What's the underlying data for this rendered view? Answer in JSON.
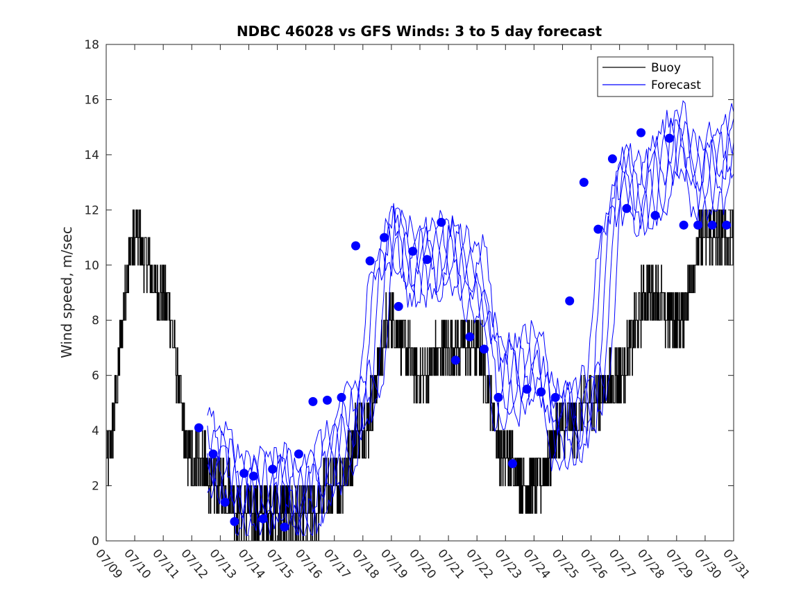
{
  "chart_data": {
    "type": "line",
    "title": "NDBC 46028 vs GFS Winds: 3 to 5 day forecast",
    "xlabel": "",
    "ylabel": "Wind speed, m/sec",
    "xlim": [
      "07/09",
      "07/31"
    ],
    "ylim": [
      0,
      18
    ],
    "x_tick_labels": [
      "07/09",
      "07/10",
      "07/11",
      "07/12",
      "07/13",
      "07/14",
      "07/15",
      "07/16",
      "07/17",
      "07/18",
      "07/19",
      "07/20",
      "07/21",
      "07/22",
      "07/23",
      "07/24",
      "07/25",
      "07/26",
      "07/27",
      "07/28",
      "07/29",
      "07/30",
      "07/31"
    ],
    "y_tick_labels": [
      "0",
      "2",
      "4",
      "6",
      "8",
      "10",
      "12",
      "14",
      "16",
      "18"
    ],
    "legend": {
      "position": "top-right",
      "entries": [
        "Buoy",
        "Forecast"
      ]
    },
    "grid": false,
    "series": [
      {
        "name": "Buoy",
        "color": "#000000",
        "style": "step line (integer m/s readings, daily samples)",
        "x": [
          "07/09",
          "07/10",
          "07/11",
          "07/12",
          "07/13",
          "07/14",
          "07/15",
          "07/16",
          "07/17",
          "07/18",
          "07/19",
          "07/20",
          "07/21",
          "07/22",
          "07/23",
          "07/24",
          "07/25",
          "07/26",
          "07/27",
          "07/28",
          "07/29",
          "07/30",
          "07/31"
        ],
        "values": [
          3,
          11,
          9,
          3,
          2,
          1,
          1,
          1,
          2,
          4,
          8,
          6,
          7,
          7,
          3,
          2,
          4,
          5,
          6,
          9,
          8,
          11,
          11
        ]
      },
      {
        "name": "Forecast",
        "color": "#0000ff",
        "style": "lines (multiple overlapping forecast runs)",
        "x": [
          "07/12",
          "07/13",
          "07/14",
          "07/15",
          "07/16",
          "07/17",
          "07/18",
          "07/19",
          "07/20",
          "07/21",
          "07/22",
          "07/23",
          "07/24",
          "07/25",
          "07/26",
          "07/27",
          "07/28",
          "07/29",
          "07/30",
          "07/31"
        ],
        "values": [
          4.0,
          3.0,
          1.5,
          2.0,
          1.5,
          3.0,
          5.0,
          11.0,
          10.0,
          10.5,
          9.5,
          5.5,
          6.5,
          4.0,
          5.0,
          13.0,
          12.5,
          14.5,
          13.0,
          14.5
        ]
      },
      {
        "name": "",
        "color": "#0000ff",
        "style": "markers (filled circles)",
        "x": [
          "07/12",
          "07/12",
          "07/13",
          "07/13",
          "07/13",
          "07/14",
          "07/14",
          "07/14",
          "07/15",
          "07/15",
          "07/16",
          "07/16",
          "07/17",
          "07/17",
          "07/18",
          "07/18",
          "07/19",
          "07/19",
          "07/20",
          "07/20",
          "07/21",
          "07/21",
          "07/22",
          "07/22",
          "07/23",
          "07/23",
          "07/24",
          "07/24",
          "07/25",
          "07/25",
          "07/26",
          "07/26",
          "07/27",
          "07/27",
          "07/28",
          "07/28",
          "07/29",
          "07/29",
          "07/30",
          "07/30"
        ],
        "values": [
          4.1,
          3.15,
          1.4,
          0.7,
          2.45,
          2.35,
          0.8,
          2.6,
          0.5,
          3.15,
          5.05,
          5.1,
          5.2,
          10.7,
          10.15,
          11.0,
          8.5,
          10.5,
          10.2,
          11.55,
          6.55,
          7.4,
          6.95,
          5.2,
          2.8,
          5.5,
          5.4,
          5.2,
          8.7,
          13.0,
          11.3,
          13.85,
          12.05,
          14.8,
          11.8,
          14.6,
          11.45,
          11.45,
          11.45,
          11.45
        ]
      }
    ]
  }
}
